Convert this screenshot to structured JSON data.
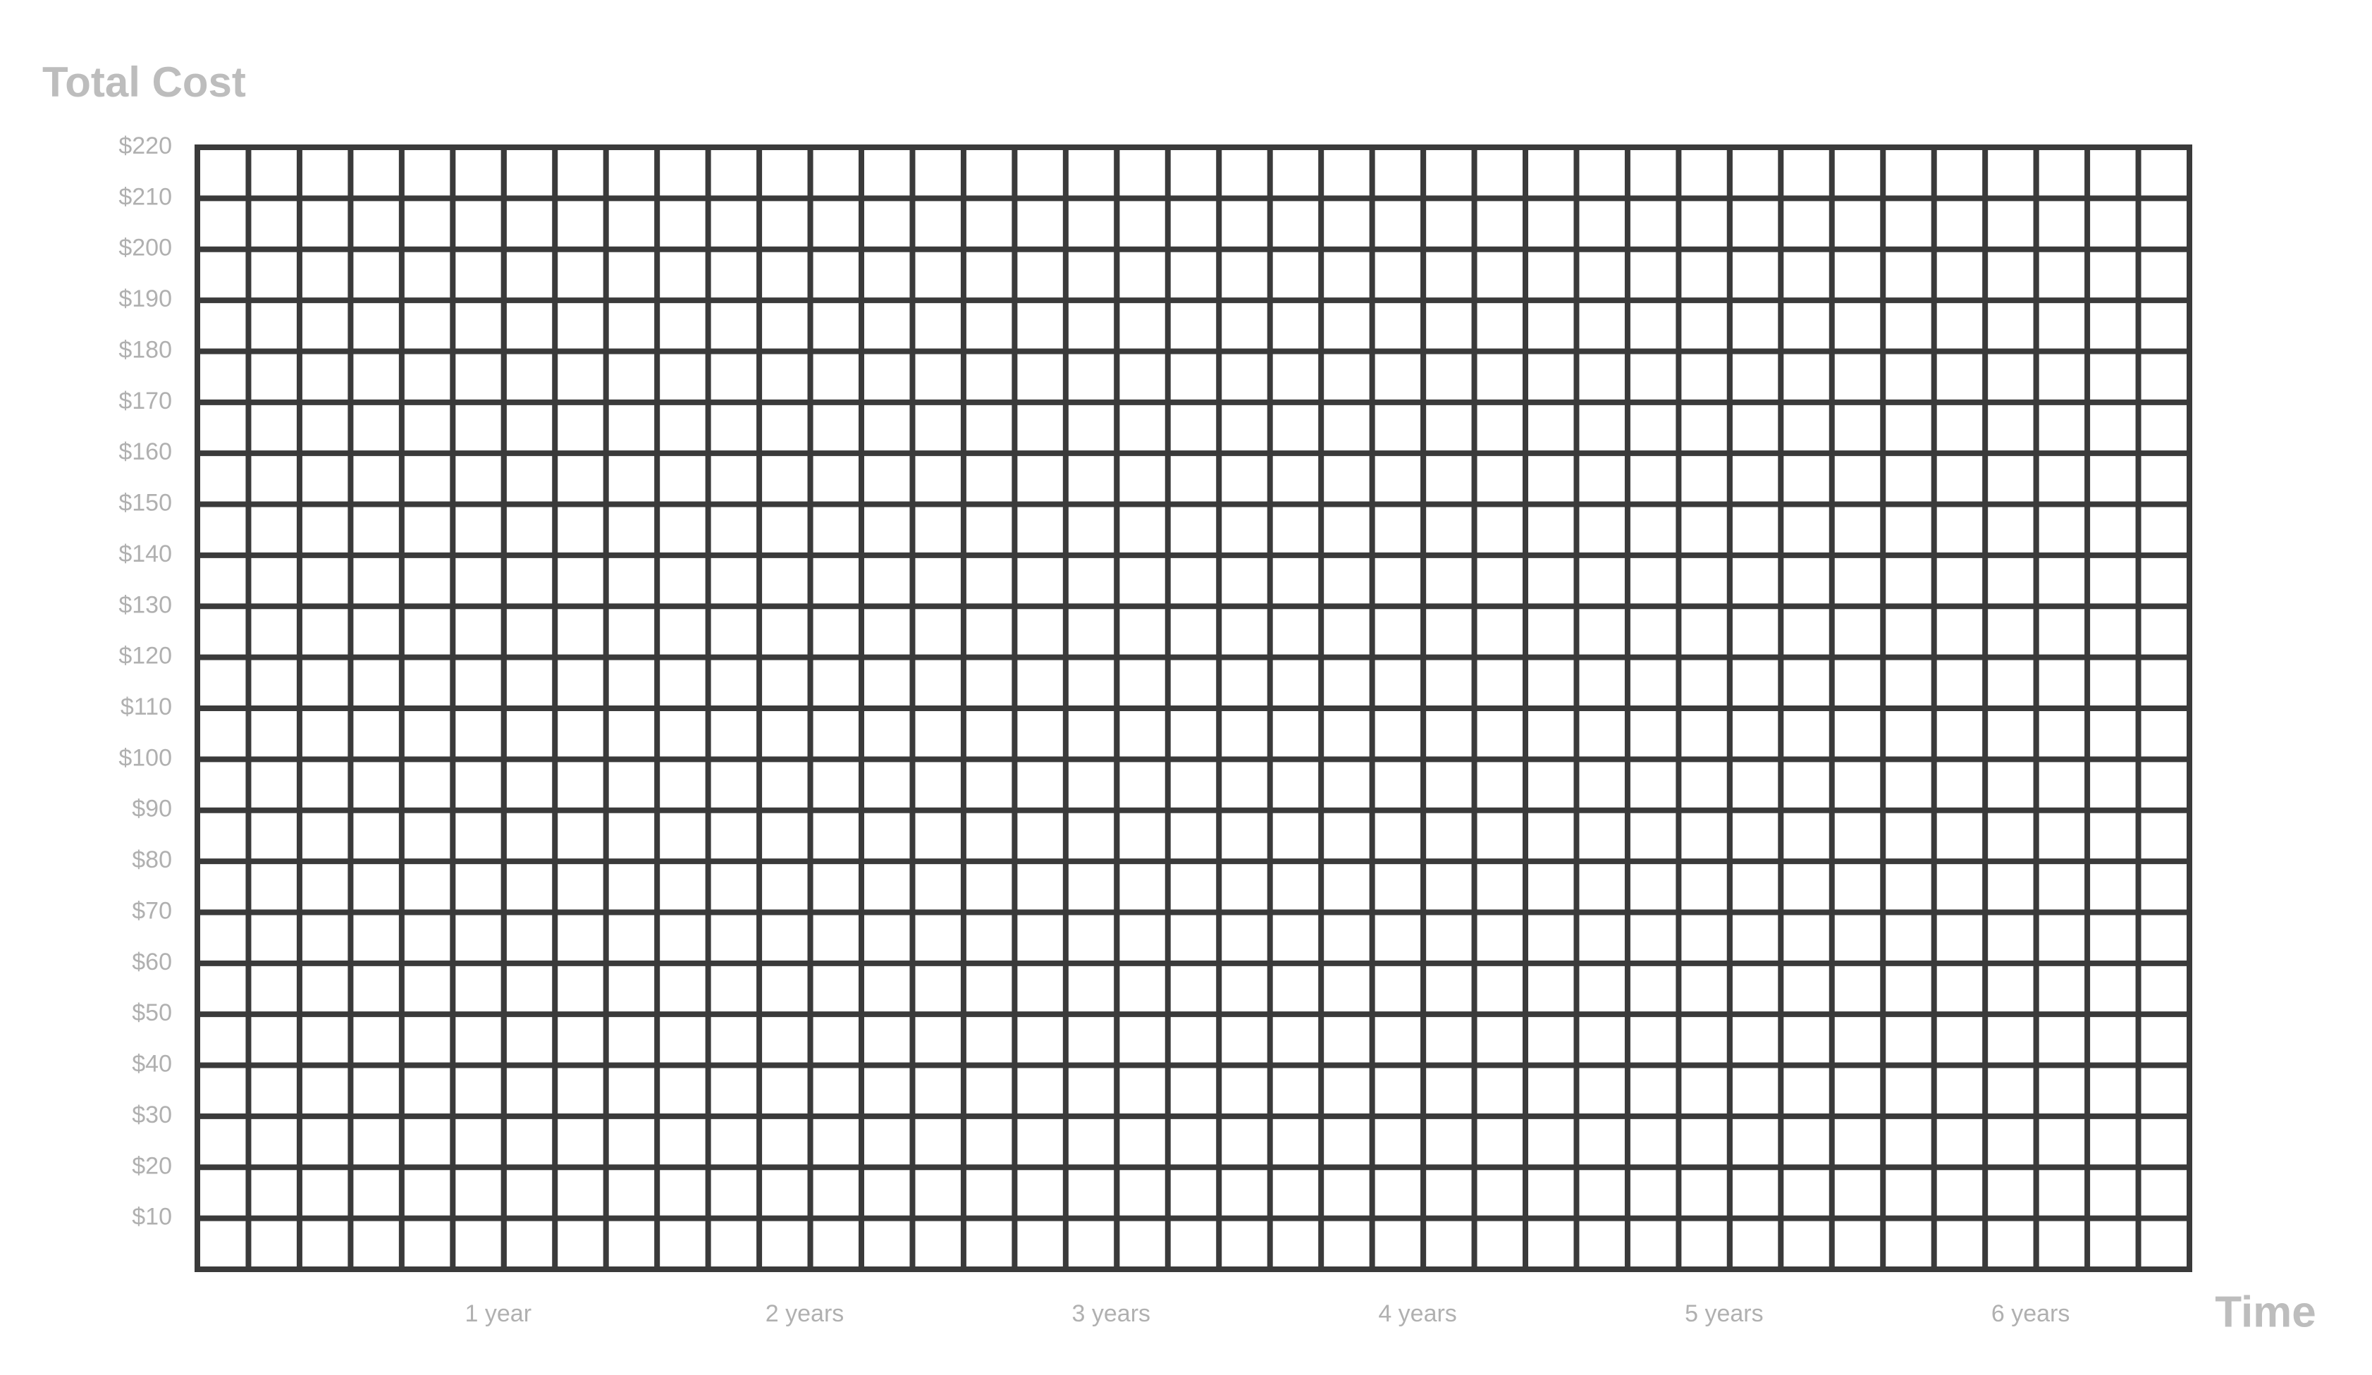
{
  "chart_data": {
    "type": "line",
    "title": "Total Cost",
    "x_label": "Time",
    "xlim": [
      0,
      6.5
    ],
    "xticks": [
      {
        "value": 1,
        "label": "1 year"
      },
      {
        "value": 2,
        "label": "2 years"
      },
      {
        "value": 3,
        "label": "3 years"
      },
      {
        "value": 4,
        "label": "4 years"
      },
      {
        "value": 5,
        "label": "5 years"
      },
      {
        "value": 6,
        "label": "6 years"
      }
    ],
    "ylim": [
      0,
      220
    ],
    "yticks": [
      {
        "value": 10,
        "label": "$10"
      },
      {
        "value": 20,
        "label": "$20"
      },
      {
        "value": 30,
        "label": "$30"
      },
      {
        "value": 40,
        "label": "$40"
      },
      {
        "value": 50,
        "label": "$50"
      },
      {
        "value": 60,
        "label": "$60"
      },
      {
        "value": 70,
        "label": "$70"
      },
      {
        "value": 80,
        "label": "$80"
      },
      {
        "value": 90,
        "label": "$90"
      },
      {
        "value": 100,
        "label": "$100"
      },
      {
        "value": 110,
        "label": "$110"
      },
      {
        "value": 120,
        "label": "$120"
      },
      {
        "value": 130,
        "label": "$130"
      },
      {
        "value": 140,
        "label": "$140"
      },
      {
        "value": 150,
        "label": "$150"
      },
      {
        "value": 160,
        "label": "$160"
      },
      {
        "value": 170,
        "label": "$170"
      },
      {
        "value": 180,
        "label": "$180"
      },
      {
        "value": 190,
        "label": "$190"
      },
      {
        "value": 200,
        "label": "$200"
      },
      {
        "value": 210,
        "label": "$210"
      },
      {
        "value": 220,
        "label": "$220"
      }
    ],
    "grid": true,
    "grid_color": "#3a3a3a"
  }
}
